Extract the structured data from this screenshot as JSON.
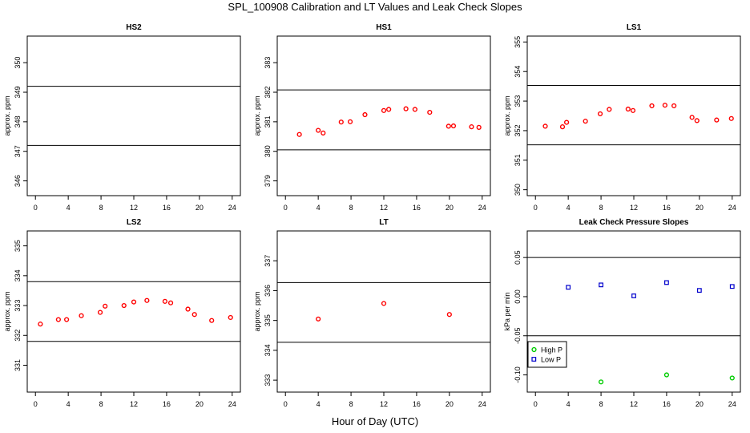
{
  "figure": {
    "title": "SPL_100908  Calibration and LT Values and Leak Check Slopes",
    "xlabel": "Hour of Day (UTC)"
  },
  "colors": {
    "red": "#ff0000",
    "green": "#00cc00",
    "blue": "#0000cc",
    "axis": "#000000"
  },
  "chart_data": [
    {
      "type": "scatter",
      "title": "HS2",
      "ylabel": "approx. ppm",
      "xlim": [
        -1,
        25
      ],
      "ylim": [
        345.5,
        350.9
      ],
      "xticks": [
        0,
        4,
        8,
        12,
        16,
        20,
        24
      ],
      "yticks": [
        346,
        347,
        348,
        349,
        350
      ],
      "hlines": [
        349.2,
        347.2
      ],
      "series": []
    },
    {
      "type": "scatter",
      "title": "HS1",
      "ylabel": "approx. ppm",
      "xlim": [
        -1,
        25
      ],
      "ylim": [
        378.5,
        383.9
      ],
      "xticks": [
        0,
        4,
        8,
        12,
        16,
        20,
        24
      ],
      "yticks": [
        379,
        380,
        381,
        382,
        383
      ],
      "hlines": [
        382.08,
        380.05
      ],
      "series": [
        {
          "color": "red",
          "marker": "circle",
          "x": [
            1.7,
            4.0,
            4.6,
            6.8,
            7.9,
            9.7,
            12.0,
            12.6,
            14.7,
            15.8,
            17.6,
            19.9,
            20.5,
            22.7,
            23.6
          ],
          "y": [
            380.57,
            380.71,
            380.62,
            380.99,
            381.0,
            381.24,
            381.38,
            381.42,
            381.44,
            381.42,
            381.32,
            380.85,
            380.86,
            380.83,
            380.81
          ]
        }
      ]
    },
    {
      "type": "scatter",
      "title": "LS1",
      "ylabel": "approx. ppm",
      "xlim": [
        -1,
        25
      ],
      "ylim": [
        349.8,
        355.2
      ],
      "xticks": [
        0,
        4,
        8,
        12,
        16,
        20,
        24
      ],
      "yticks": [
        350,
        351,
        352,
        353,
        354,
        355
      ],
      "hlines": [
        353.53,
        351.52
      ],
      "series": [
        {
          "color": "red",
          "marker": "circle",
          "x": [
            1.2,
            3.3,
            3.8,
            6.1,
            7.9,
            9.0,
            11.3,
            11.9,
            14.2,
            15.8,
            16.9,
            19.1,
            19.7,
            22.1,
            23.9
          ],
          "y": [
            352.15,
            352.13,
            352.28,
            352.32,
            352.57,
            352.72,
            352.73,
            352.68,
            352.84,
            352.86,
            352.84,
            352.45,
            352.34,
            352.36,
            352.41
          ]
        }
      ]
    },
    {
      "type": "scatter",
      "title": "LS2",
      "ylabel": "approx. ppm",
      "xlim": [
        -1,
        25
      ],
      "ylim": [
        330.1,
        335.5
      ],
      "xticks": [
        0,
        4,
        8,
        12,
        16,
        20,
        24
      ],
      "yticks": [
        331,
        332,
        333,
        334,
        335
      ],
      "hlines": [
        333.8,
        331.8
      ],
      "series": [
        {
          "color": "red",
          "marker": "circle",
          "x": [
            0.6,
            2.8,
            3.8,
            5.6,
            7.9,
            8.5,
            10.8,
            12.0,
            13.6,
            15.8,
            16.5,
            18.6,
            19.4,
            21.5,
            23.8
          ],
          "y": [
            332.38,
            332.53,
            332.53,
            332.66,
            332.77,
            332.98,
            333.0,
            333.12,
            333.17,
            333.14,
            333.09,
            332.88,
            332.7,
            332.5,
            332.6
          ]
        }
      ]
    },
    {
      "type": "scatter",
      "title": "LT",
      "ylabel": "approx. ppm",
      "xlim": [
        -1,
        25
      ],
      "ylim": [
        332.6,
        338.0
      ],
      "xticks": [
        0,
        4,
        8,
        12,
        16,
        20,
        24
      ],
      "yticks": [
        333,
        334,
        335,
        336,
        337
      ],
      "hlines": [
        336.27,
        334.27
      ],
      "series": [
        {
          "color": "red",
          "marker": "circle",
          "x": [
            4.0,
            12.0,
            20.0
          ],
          "y": [
            335.05,
            335.57,
            335.2
          ]
        }
      ]
    },
    {
      "type": "scatter",
      "title": "Leak Check Pressure Slopes",
      "ylabel": "kPa per min",
      "xlim": [
        -1,
        25
      ],
      "ylim": [
        -0.122,
        0.084
      ],
      "xticks": [
        0,
        4,
        8,
        12,
        16,
        20,
        24
      ],
      "yticks": [
        -0.1,
        -0.05,
        0.0,
        0.05
      ],
      "ytick_labels": [
        "-0.10",
        "-0.05",
        "0.00",
        "0.05"
      ],
      "hlines": [
        0.05,
        -0.05
      ],
      "legend_position": "bottom-left",
      "series": [
        {
          "name": "High P",
          "color": "green",
          "marker": "circle",
          "x": [
            8,
            16,
            24
          ],
          "y": [
            -0.109,
            -0.1,
            -0.104
          ]
        },
        {
          "name": "Low P",
          "color": "blue",
          "marker": "square",
          "x": [
            4,
            8,
            12,
            16,
            20,
            24
          ],
          "y": [
            0.012,
            0.015,
            0.001,
            0.018,
            0.008,
            0.013
          ]
        }
      ]
    }
  ]
}
